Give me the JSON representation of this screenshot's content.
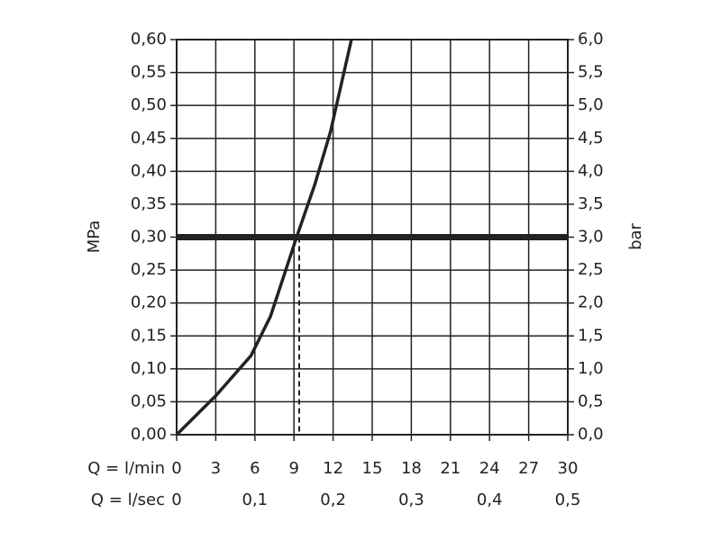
{
  "chart_data": {
    "type": "line",
    "y_label": "MPa",
    "y2_label": "bar",
    "x_label": "Q = l/min",
    "x2_label": "Q = l/sec",
    "x": [
      0,
      3.0,
      5.7,
      7.2,
      9.2,
      10.6,
      11.8,
      13.4
    ],
    "values": [
      0,
      0.059,
      0.12,
      0.18,
      0.3,
      0.38,
      0.46,
      0.6
    ],
    "color": "#222222",
    "xlim": [
      0,
      30
    ],
    "xticks": [
      0,
      3,
      6,
      9,
      12,
      15,
      18,
      21,
      24,
      27,
      30
    ],
    "x2lim": [
      0,
      0.5
    ],
    "x2ticks": [
      0,
      {
        "value": 0.1,
        "label": "0,1"
      },
      {
        "value": 0.2,
        "label": "0,2"
      },
      {
        "value": 0.3,
        "label": "0,3"
      },
      {
        "value": 0.4,
        "label": "0,4"
      },
      {
        "value": 0.5,
        "label": "0,5"
      }
    ],
    "ylim": [
      0,
      0.6
    ],
    "yticks": [
      {
        "value": 0,
        "label": "0,00"
      },
      {
        "value": 0.05,
        "label": "0,05"
      },
      {
        "value": 0.1,
        "label": "0,10"
      },
      {
        "value": 0.15,
        "label": "0,15"
      },
      {
        "value": 0.2,
        "label": "0,20"
      },
      {
        "value": 0.25,
        "label": "0,25"
      },
      {
        "value": 0.3,
        "label": "0,30"
      },
      {
        "value": 0.35,
        "label": "0,35"
      },
      {
        "value": 0.4,
        "label": "0,40"
      },
      {
        "value": 0.45,
        "label": "0,45"
      },
      {
        "value": 0.5,
        "label": "0,50"
      },
      {
        "value": 0.55,
        "label": "0,55"
      },
      {
        "value": 0.6,
        "label": "0,60"
      }
    ],
    "y2lim": [
      0,
      6
    ],
    "y2ticks": [
      {
        "value": 0,
        "label": "0,0"
      },
      {
        "value": 0.5,
        "label": "0,5"
      },
      {
        "value": 1,
        "label": "1,0"
      },
      {
        "value": 1.5,
        "label": "1,5"
      },
      {
        "value": 2,
        "label": "2,0"
      },
      {
        "value": 2.5,
        "label": "2,5"
      },
      {
        "value": 3,
        "label": "3,0"
      },
      {
        "value": 3.5,
        "label": "3,5"
      },
      {
        "value": 4,
        "label": "4,0"
      },
      {
        "value": 4.5,
        "label": "4,5"
      },
      {
        "value": 5,
        "label": "5,0"
      },
      {
        "value": 5.5,
        "label": "5,5"
      },
      {
        "value": 6,
        "label": "6,0"
      }
    ],
    "reference_pressure": 0.3,
    "reference_flow": 9.4,
    "grid": true
  }
}
